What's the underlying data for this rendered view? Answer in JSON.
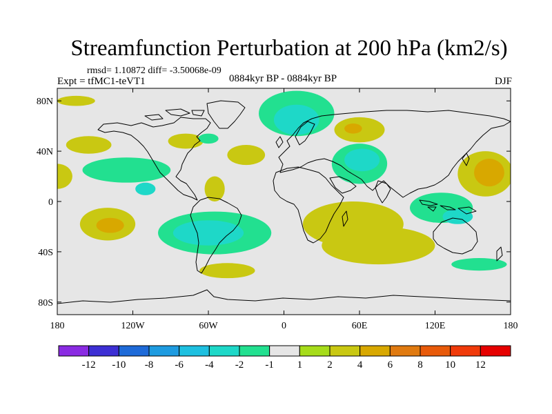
{
  "chart_data": {
    "type": "heatmap",
    "title": "Streamfunction Perturbation at 200 hPa (km2/s)",
    "stats": "rmsd= 1.10872  diff= -3.50068e-09",
    "left_label": "Expt = tfMC1-teVT1",
    "center_label": "0884kyr BP - 0884kyr BP",
    "right_label": "DJF",
    "projection": "cylindrical equidistant, global",
    "x_range": [
      -180,
      180
    ],
    "y_range": [
      -90,
      90
    ],
    "x_ticks": [
      {
        "value": -180,
        "label": "180"
      },
      {
        "value": -120,
        "label": "120W"
      },
      {
        "value": -60,
        "label": "60W"
      },
      {
        "value": 0,
        "label": "0"
      },
      {
        "value": 60,
        "label": "60E"
      },
      {
        "value": 120,
        "label": "120E"
      },
      {
        "value": 180,
        "label": "180"
      }
    ],
    "y_ticks": [
      {
        "value": 80,
        "label": "80N"
      },
      {
        "value": 40,
        "label": "40N"
      },
      {
        "value": 0,
        "label": "0"
      },
      {
        "value": -40,
        "label": "40S"
      },
      {
        "value": -80,
        "label": "80S"
      }
    ],
    "colorbar": {
      "labels": [
        "-12",
        "-10",
        "-8",
        "-6",
        "-4",
        "-2",
        "-1",
        "1",
        "2",
        "4",
        "6",
        "8",
        "10",
        "12"
      ],
      "colors": [
        "#8A2BE2",
        "#3D2FD4",
        "#1E6AD8",
        "#1E9BE0",
        "#1EC0E0",
        "#1ED8C8",
        "#22E090",
        "#E6E6E6",
        "#A6DC1A",
        "#C9C812",
        "#D8A800",
        "#E07A10",
        "#E85A0A",
        "#F03A0A",
        "#E60000"
      ]
    },
    "background_color": "#E6E6E6",
    "regions": [
      {
        "id": "npac-pos",
        "level": "2",
        "lon": -155,
        "lat": 45,
        "rlon": 18,
        "rlat": 7
      },
      {
        "id": "nam-pos",
        "level": "2",
        "lon": -78,
        "lat": 48,
        "rlon": 14,
        "rlat": 6
      },
      {
        "id": "nam-neg",
        "level": "-1",
        "lon": -60,
        "lat": 50,
        "rlon": 8,
        "rlat": 4
      },
      {
        "id": "natl-pos",
        "level": "2",
        "lon": -30,
        "lat": 37,
        "rlon": 15,
        "rlat": 8
      },
      {
        "id": "arctic-neg-outer",
        "level": "-1",
        "lon": 10,
        "lat": 70,
        "rlon": 30,
        "rlat": 18
      },
      {
        "id": "arctic-neg-inner",
        "level": "-2",
        "lon": 10,
        "lat": 65,
        "rlon": 18,
        "rlat": 12
      },
      {
        "id": "asia-pos",
        "level": "2",
        "lon": 60,
        "lat": 57,
        "rlon": 20,
        "rlat": 10
      },
      {
        "id": "asia-pos-core",
        "level": "4",
        "lon": 55,
        "lat": 58,
        "rlon": 7,
        "rlat": 4
      },
      {
        "id": "me-neg-outer",
        "level": "-1",
        "lon": 60,
        "lat": 30,
        "rlon": 22,
        "rlat": 16
      },
      {
        "id": "me-neg-inner",
        "level": "-2",
        "lon": 62,
        "lat": 33,
        "rlon": 14,
        "rlat": 9
      },
      {
        "id": "wpac-pos",
        "level": "2",
        "lon": 160,
        "lat": 22,
        "rlon": 22,
        "rlat": 18
      },
      {
        "id": "wpac-pos-core",
        "level": "4",
        "lon": 163,
        "lat": 23,
        "rlon": 12,
        "rlat": 11
      },
      {
        "id": "epac-neg",
        "level": "-1",
        "lon": -125,
        "lat": 25,
        "rlon": 35,
        "rlat": 10
      },
      {
        "id": "epac-neg-core",
        "level": "-2",
        "lon": -110,
        "lat": 10,
        "rlon": 8,
        "rlat": 5
      },
      {
        "id": "carib-pos",
        "level": "2",
        "lon": -55,
        "lat": 10,
        "rlon": 8,
        "rlat": 10
      },
      {
        "id": "datelinew-pos",
        "level": "2",
        "lon": -180,
        "lat": 20,
        "rlon": 12,
        "rlat": 10
      },
      {
        "id": "spac-pos",
        "level": "2",
        "lon": -140,
        "lat": -18,
        "rlon": 22,
        "rlat": 13
      },
      {
        "id": "spac-pos-core",
        "level": "4",
        "lon": -138,
        "lat": -19,
        "rlon": 11,
        "rlat": 6
      },
      {
        "id": "sam-neg-outer",
        "level": "-1",
        "lon": -55,
        "lat": -25,
        "rlon": 45,
        "rlat": 17
      },
      {
        "id": "sam-neg-inner",
        "level": "-2",
        "lon": -60,
        "lat": -25,
        "rlon": 28,
        "rlat": 10
      },
      {
        "id": "safr-pos",
        "level": "2",
        "lon": 55,
        "lat": -18,
        "rlon": 40,
        "rlat": 18
      },
      {
        "id": "sindian-pos",
        "level": "2",
        "lon": 75,
        "lat": -35,
        "rlon": 45,
        "rlat": 15
      },
      {
        "id": "indo-neg",
        "level": "-1",
        "lon": 125,
        "lat": -5,
        "rlon": 25,
        "rlat": 12
      },
      {
        "id": "indo-neg-core",
        "level": "-2",
        "lon": 138,
        "lat": -12,
        "rlon": 12,
        "rlat": 6
      },
      {
        "id": "satl-pos",
        "level": "2",
        "lon": -45,
        "lat": -55,
        "rlon": 22,
        "rlat": 6
      },
      {
        "id": "spac-neg",
        "level": "-1",
        "lon": 155,
        "lat": -50,
        "rlon": 22,
        "rlat": 5
      },
      {
        "id": "arctic-pos-left",
        "level": "2",
        "lon": -165,
        "lat": 80,
        "rlon": 15,
        "rlat": 4
      }
    ]
  }
}
